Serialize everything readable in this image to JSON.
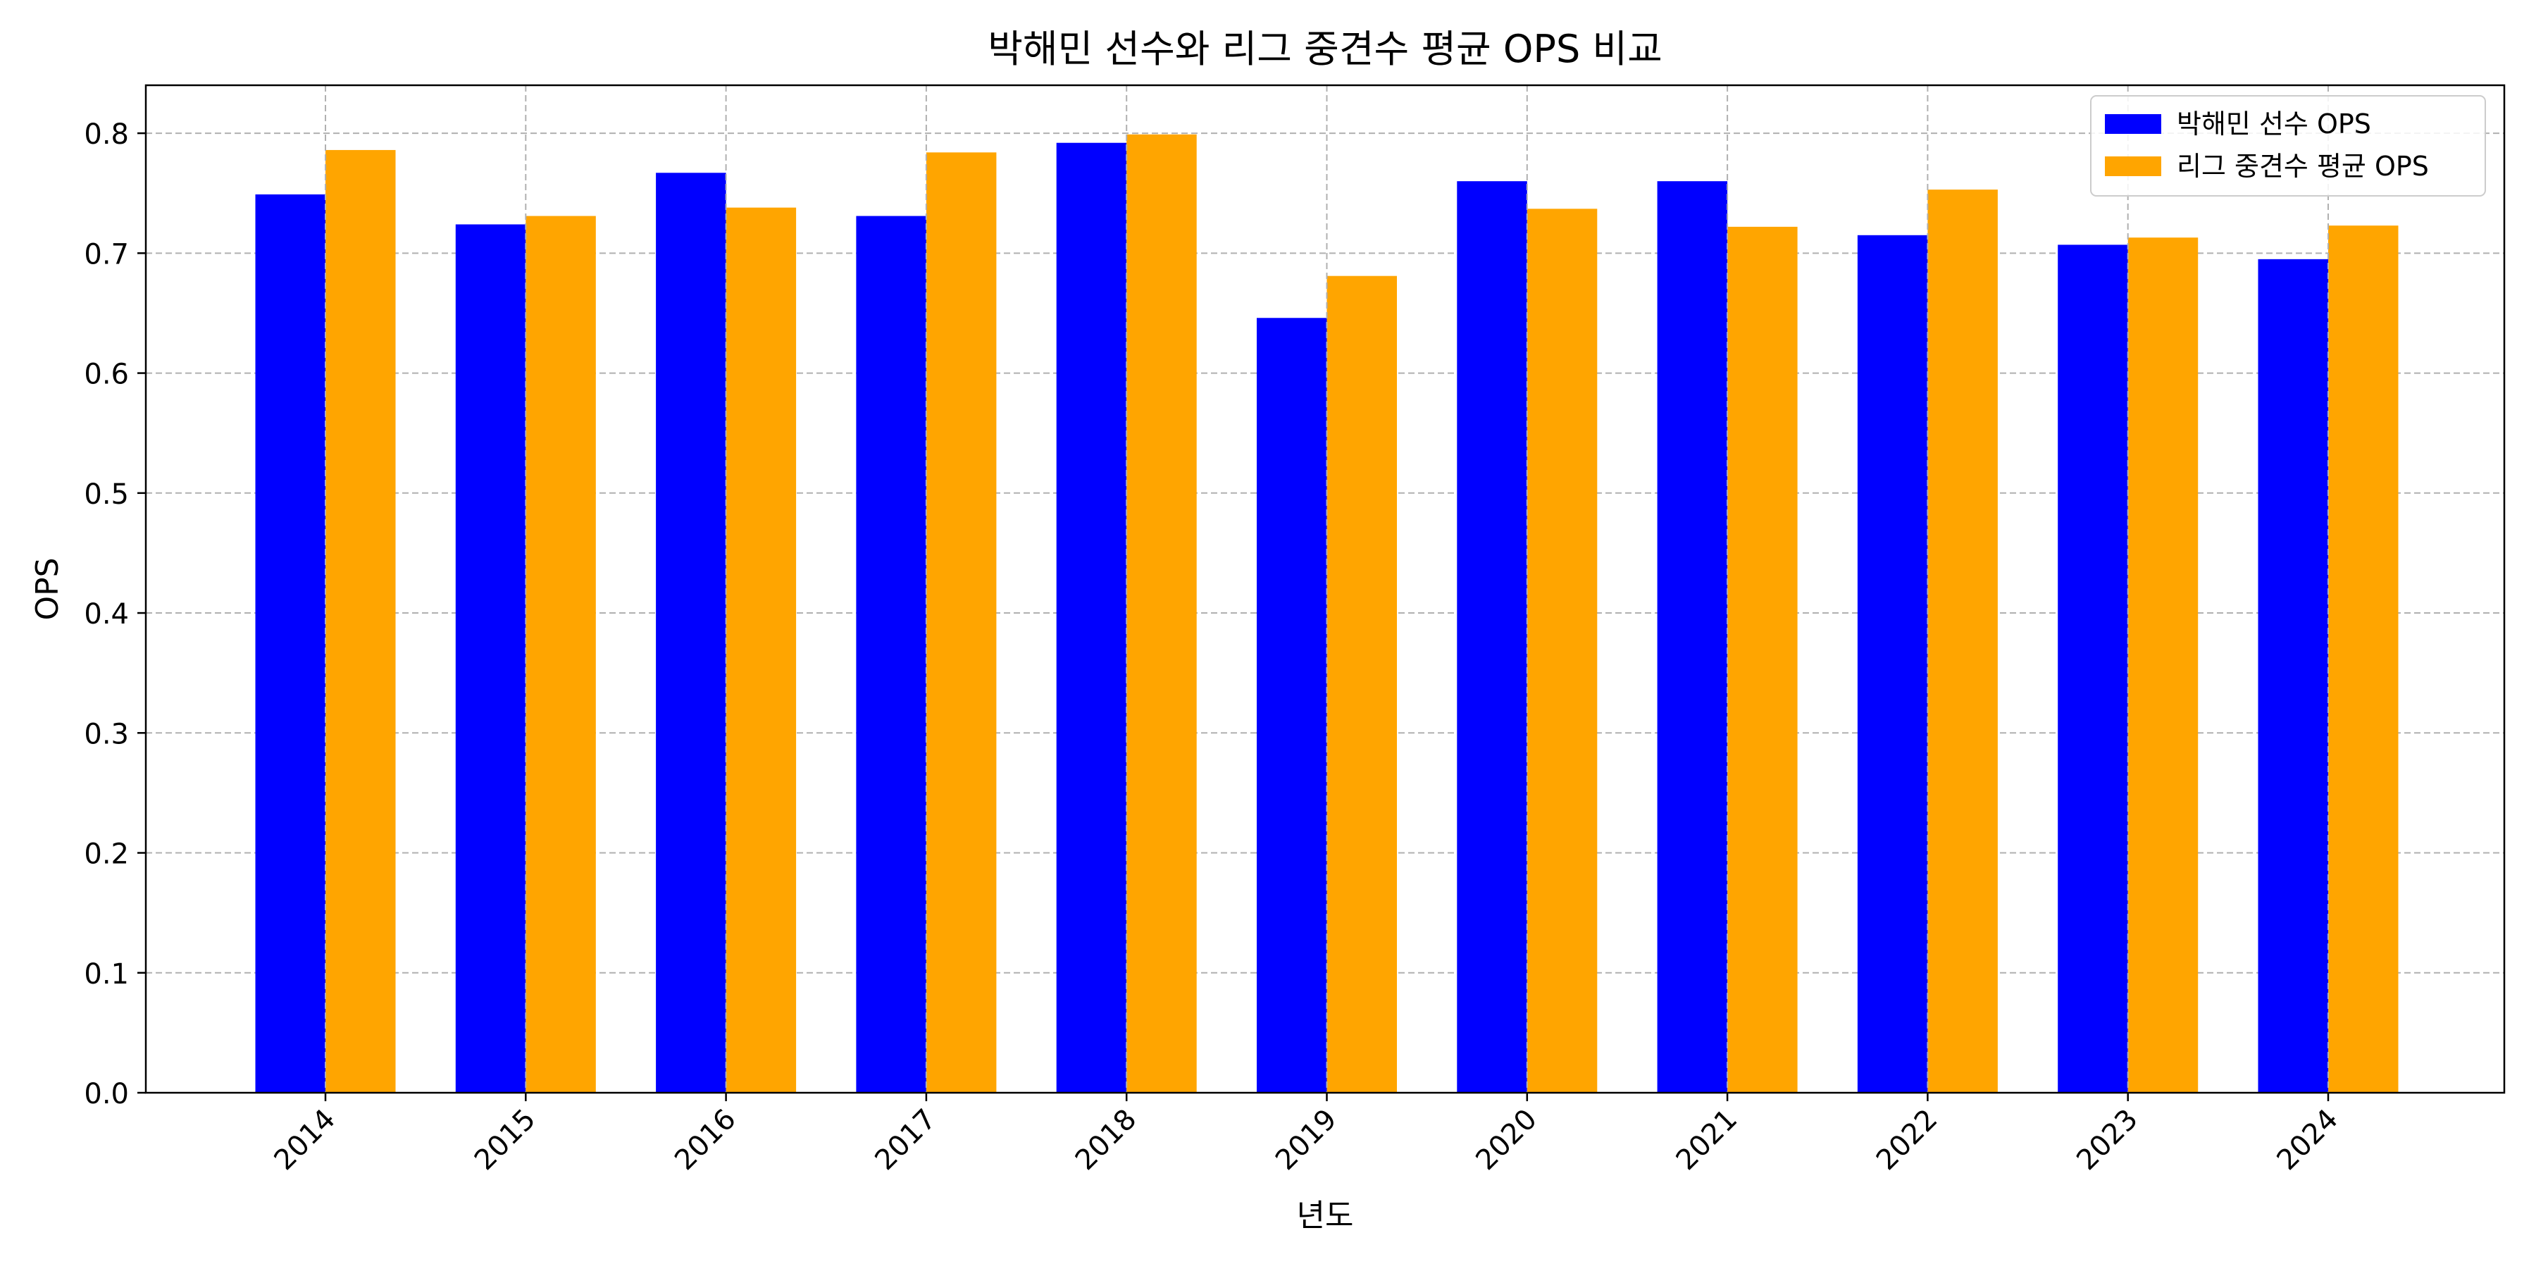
{
  "chart_data": {
    "type": "bar",
    "title": "박해민 선수와 리그 중견수 평균 OPS 비교",
    "xlabel": "년도",
    "ylabel": "OPS",
    "categories": [
      "2014",
      "2015",
      "2016",
      "2017",
      "2018",
      "2019",
      "2020",
      "2021",
      "2022",
      "2023",
      "2024"
    ],
    "series": [
      {
        "name": "박해민 선수 OPS",
        "color": "#0000ff",
        "values": [
          0.749,
          0.724,
          0.767,
          0.731,
          0.792,
          0.646,
          0.76,
          0.76,
          0.715,
          0.707,
          0.695
        ]
      },
      {
        "name": "리그 중견수 평균 OPS",
        "color": "#ffa500",
        "values": [
          0.786,
          0.731,
          0.738,
          0.784,
          0.799,
          0.681,
          0.737,
          0.722,
          0.753,
          0.713,
          0.723
        ]
      }
    ],
    "ylim": [
      0,
      0.84
    ],
    "yticks": [
      "0.0",
      "0.1",
      "0.2",
      "0.3",
      "0.4",
      "0.5",
      "0.6",
      "0.7",
      "0.8"
    ],
    "grid": true,
    "legend_position": "top-right"
  }
}
